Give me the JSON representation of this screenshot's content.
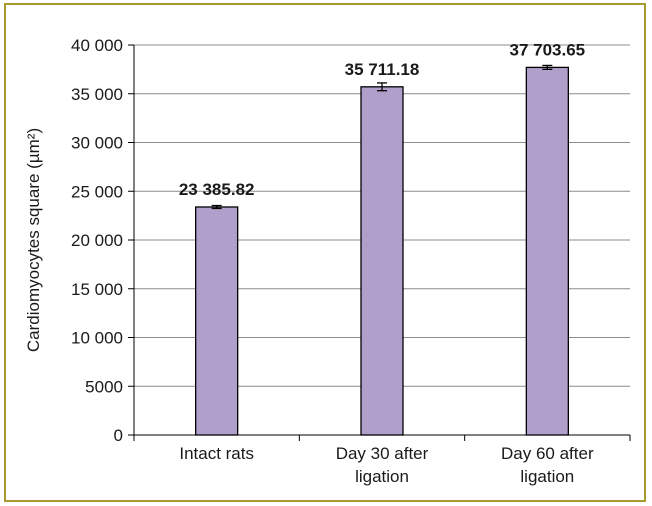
{
  "chart_data": {
    "type": "bar",
    "title": "",
    "xlabel": "",
    "ylabel": "Cardiomyocytes square (µm²)",
    "ylim": [
      0,
      40000
    ],
    "yticks": [
      0,
      5000,
      10000,
      15000,
      20000,
      25000,
      30000,
      35000,
      40000
    ],
    "ytick_labels": [
      "0",
      "5000",
      "10 000",
      "15 000",
      "20 000",
      "25 000",
      "30 000",
      "35 000",
      "40 000"
    ],
    "categories": [
      "Intact rats",
      "Day 30 after ligation",
      "Day 60 after ligation"
    ],
    "category_lines": [
      [
        "Intact rats"
      ],
      [
        "Day 30 after",
        "ligation"
      ],
      [
        "Day 60 after",
        "ligation"
      ]
    ],
    "values": [
      23385.82,
      35711.18,
      37703.65
    ],
    "value_labels": [
      "23 385.82",
      "35 711.18",
      "37 703.65"
    ],
    "error": [
      150,
      400,
      200
    ],
    "grid": true,
    "bar_color": "#b09fcb",
    "bar_edge_color": "#000000",
    "grid_color": "#8c8c8c",
    "frame_color": "#a79a2e"
  }
}
